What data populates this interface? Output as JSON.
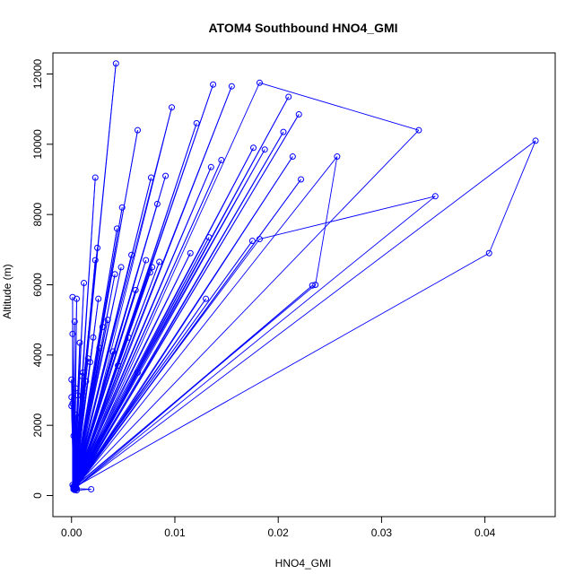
{
  "chart_data": {
    "type": "line",
    "title": "ATOM4 Southbound HNO4_GMI",
    "xlabel": "HNO4_GMI",
    "ylabel": "Altitude (m)",
    "xlim": [
      -0.0018,
      0.0468
    ],
    "ylim": [
      -600,
      12600
    ],
    "xticks": [
      0.0,
      0.01,
      0.02,
      0.03,
      0.04
    ],
    "xtick_labels": [
      "0.00",
      "0.01",
      "0.02",
      "0.03",
      "0.04"
    ],
    "yticks": [
      0,
      2000,
      4000,
      6000,
      8000,
      10000,
      12000
    ],
    "ytick_labels": [
      "0",
      "2000",
      "4000",
      "6000",
      "8000",
      "10000",
      "12000"
    ],
    "grid": false,
    "legend": "none",
    "colors": {
      "series": "#0000ff",
      "axes": "#000000",
      "background": "#ffffff"
    },
    "series": [
      {
        "marker": "open-circle",
        "points": [
          [
            0.0002,
            200
          ],
          [
            0.0043,
            12300
          ],
          [
            0.0003,
            250
          ],
          [
            0.0005,
            5600
          ],
          [
            0.0002,
            180
          ],
          [
            0.0064,
            10400
          ],
          [
            0.0002,
            200
          ],
          [
            0.0044,
            7600
          ],
          [
            0.0003,
            160
          ],
          [
            0.0023,
            9050
          ],
          [
            0.0004,
            250
          ],
          [
            0.0049,
            8200
          ],
          [
            0.0003,
            300
          ],
          [
            0.0097,
            11050
          ],
          [
            0.0005,
            200
          ],
          [
            0.0121,
            10600
          ],
          [
            0.0004,
            220
          ],
          [
            0.0137,
            11700
          ],
          [
            0.0003,
            240
          ],
          [
            0.0155,
            11650
          ],
          [
            0.0004,
            200
          ],
          [
            0.0182,
            11750
          ],
          [
            0.0336,
            10400
          ],
          [
            0.0003,
            250
          ],
          [
            0.021,
            11350
          ],
          [
            0.0004,
            220
          ],
          [
            0.022,
            10850
          ],
          [
            0.0003,
            200
          ],
          [
            0.0205,
            10350
          ],
          [
            0.0004,
            180
          ],
          [
            0.0214,
            9650
          ],
          [
            0.0003,
            200
          ],
          [
            0.0187,
            9850
          ],
          [
            0.0002,
            260
          ],
          [
            0.0176,
            9900
          ],
          [
            0.0003,
            220
          ],
          [
            0.0145,
            9550
          ],
          [
            0.0002,
            200
          ],
          [
            0.0135,
            9350
          ],
          [
            0.0004,
            250
          ],
          [
            0.0222,
            9000
          ],
          [
            0.0003,
            180
          ],
          [
            0.0091,
            9100
          ],
          [
            0.0002,
            220
          ],
          [
            0.0077,
            9050
          ],
          [
            0.0003,
            200
          ],
          [
            0.0083,
            8300
          ],
          [
            0.0002,
            250
          ],
          [
            0.0025,
            7050
          ],
          [
            0.0001,
            300
          ],
          [
            0.0001,
            5650
          ],
          [
            0.0002,
            200
          ],
          [
            0.0058,
            6850
          ],
          [
            0.0003,
            240
          ],
          [
            0.0072,
            6700
          ],
          [
            0.0002,
            200
          ],
          [
            0.0085,
            6650
          ],
          [
            0.0003,
            180
          ],
          [
            0.0078,
            6500
          ],
          [
            0.0004,
            220
          ],
          [
            0.0076,
            6350
          ],
          [
            0.0003,
            250
          ],
          [
            0.0062,
            5850
          ],
          [
            0.0002,
            200
          ],
          [
            0.0042,
            6300
          ],
          [
            0.0003,
            220
          ],
          [
            0.0023,
            6700
          ],
          [
            0.0002,
            180
          ],
          [
            0.0012,
            6050
          ],
          [
            0.0003,
            200
          ],
          [
            0.0115,
            6900
          ],
          [
            0.0002,
            240
          ],
          [
            0.0133,
            7350
          ],
          [
            0.0003,
            200
          ],
          [
            0.013,
            5600
          ],
          [
            0.0002,
            220
          ],
          [
            0.0175,
            7250
          ],
          [
            0.0003,
            250
          ],
          [
            0.0182,
            7300
          ],
          [
            0.0352,
            8520
          ],
          [
            0.0003,
            200
          ],
          [
            0.0449,
            10100
          ],
          [
            0.0404,
            6900
          ],
          [
            0.0002,
            220
          ],
          [
            0.0233,
            5980
          ],
          [
            0.0003,
            200
          ],
          [
            0.0257,
            9650
          ],
          [
            0.0236,
            6000
          ],
          [
            0.0002,
            240
          ],
          [
            0.0064,
            3500
          ],
          [
            0.0003,
            200
          ],
          [
            0.0001,
            4600
          ],
          [
            0.0002,
            250
          ],
          [
            0.0003,
            4950
          ],
          [
            0.0002,
            200
          ],
          [
            0.0008,
            4350
          ],
          [
            0.0003,
            220
          ],
          [
            0.0011,
            3500
          ],
          [
            0.0002,
            200
          ],
          [
            0.0,
            3300
          ],
          [
            0.0003,
            250
          ],
          [
            0.0004,
            3050
          ],
          [
            0.0002,
            200
          ],
          [
            0.0,
            2800
          ],
          [
            0.0003,
            220
          ],
          [
            0.0,
            2550
          ],
          [
            0.0002,
            240
          ],
          [
            0.0001,
            2620
          ],
          [
            0.0003,
            200
          ],
          [
            0.0002,
            1700
          ],
          [
            0.0003,
            170
          ],
          [
            0.0004,
            2300
          ],
          [
            0.0005,
            150
          ],
          [
            0.0019,
            180
          ],
          [
            0.0003,
            200
          ],
          [
            0.003,
            4800
          ],
          [
            0.0002,
            220
          ],
          [
            0.0045,
            3700
          ],
          [
            0.0003,
            250
          ],
          [
            0.0055,
            4500
          ],
          [
            0.0002,
            200
          ],
          [
            0.004,
            4100
          ],
          [
            0.0003,
            220
          ],
          [
            0.0027,
            4200
          ],
          [
            0.0002,
            250
          ],
          [
            0.0018,
            3800
          ],
          [
            0.0003,
            200
          ],
          [
            0.0014,
            3250
          ],
          [
            0.0002,
            220
          ],
          [
            0.001,
            3400
          ],
          [
            0.0003,
            200
          ],
          [
            0.0035,
            5000
          ],
          [
            0.0002,
            240
          ],
          [
            0.0048,
            6500
          ],
          [
            0.0003,
            200
          ],
          [
            0.0026,
            5600
          ],
          [
            0.0002,
            220
          ],
          [
            0.0021,
            4500
          ],
          [
            0.0003,
            250
          ],
          [
            0.0016,
            3900
          ],
          [
            0.0002,
            200
          ],
          [
            0.0006,
            2850
          ],
          [
            0.0003,
            220
          ]
        ]
      }
    ]
  }
}
